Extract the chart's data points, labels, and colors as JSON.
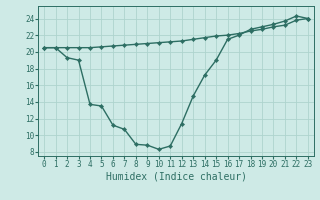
{
  "xlabel": "Humidex (Indice chaleur)",
  "background_color": "#ceeae6",
  "line_color": "#2d6e63",
  "grid_color": "#aed4ce",
  "x_values": [
    0,
    1,
    2,
    3,
    4,
    5,
    6,
    7,
    8,
    9,
    10,
    11,
    12,
    13,
    14,
    15,
    16,
    17,
    18,
    19,
    20,
    21,
    22,
    23
  ],
  "curve_y": [
    20.5,
    20.5,
    19.3,
    19.0,
    13.7,
    13.5,
    11.2,
    10.7,
    8.9,
    8.8,
    8.3,
    8.7,
    11.4,
    14.7,
    17.2,
    19.0,
    21.5,
    22.0,
    22.7,
    23.0,
    23.3,
    23.7,
    24.3,
    24.0
  ],
  "line_y": [
    20.5,
    20.5,
    20.5,
    20.5,
    20.5,
    20.6,
    20.7,
    20.8,
    20.9,
    21.0,
    21.1,
    21.2,
    21.3,
    21.5,
    21.7,
    21.9,
    22.0,
    22.2,
    22.5,
    22.7,
    23.0,
    23.2,
    23.8,
    24.0
  ],
  "xlim": [
    -0.5,
    23.5
  ],
  "ylim": [
    7.5,
    25.5
  ],
  "yticks": [
    8,
    10,
    12,
    14,
    16,
    18,
    20,
    22,
    24
  ],
  "xticks": [
    0,
    1,
    2,
    3,
    4,
    5,
    6,
    7,
    8,
    9,
    10,
    11,
    12,
    13,
    14,
    15,
    16,
    17,
    18,
    19,
    20,
    21,
    22,
    23
  ],
  "marker": "D",
  "markersize": 2.2,
  "linewidth": 1.0,
  "tick_fontsize": 5.5,
  "xlabel_fontsize": 7.0
}
